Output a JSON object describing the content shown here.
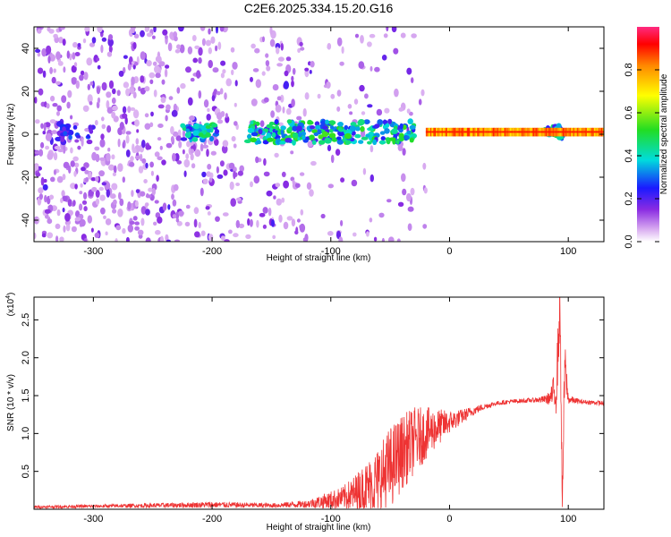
{
  "title": "C2E6.2025.334.15.20.G16",
  "chart_data": [
    {
      "type": "heatmap",
      "xlabel": "Height of straight line (km)",
      "ylabel": "Frequency (Hz)",
      "xlim": [
        -350,
        130
      ],
      "ylim": [
        -50,
        50
      ],
      "xticks": [
        -300,
        -200,
        -100,
        0,
        100
      ],
      "yticks": [
        -40,
        -20,
        0,
        20,
        40
      ],
      "colorbar": {
        "label": "Normalized spectral amplitude",
        "range": [
          0,
          1
        ],
        "ticks": [
          "0.0",
          "0.2",
          "0.4",
          "0.6",
          "0.8"
        ],
        "colormap": "rainbow (violet-blue-cyan-green-yellow-red-magenta)"
      },
      "features": [
        {
          "description": "Scattered weak noise (violet/blue)",
          "x_range": [
            -350,
            -20
          ],
          "freq_range": [
            -50,
            50
          ]
        },
        {
          "description": "Strong ridge near 0 Hz (green/yellow/red)",
          "x_range": [
            -20,
            130
          ],
          "freq": 0.5,
          "amplitude": 0.8
        },
        {
          "description": "Cluster",
          "x_range": [
            -225,
            -195
          ],
          "freq": 1,
          "amplitude": 0.4
        },
        {
          "description": "Cluster",
          "x_range": [
            -170,
            -30
          ],
          "freq": 1,
          "amplitude": 0.45
        },
        {
          "description": "Cluster",
          "x": 90,
          "freq": 3,
          "amplitude": 0.45
        }
      ]
    },
    {
      "type": "line",
      "xlabel": "Height of straight line (km)",
      "ylabel": "SNR (10 * v/v)",
      "y_multiplier": "(x10^4)",
      "xlim": [
        -350,
        130
      ],
      "ylim": [
        0,
        2.8
      ],
      "xticks": [
        -300,
        -200,
        -100,
        0,
        100
      ],
      "yticks": [
        "0.5",
        "1.0",
        "1.5",
        "2.0",
        "2.5"
      ],
      "color": "#ee3333",
      "series": [
        {
          "x": [
            -350,
            -300,
            -250,
            -200,
            -150,
            -120,
            -100,
            -90,
            -80,
            -70,
            -60,
            -50,
            -40,
            -30,
            -20,
            -10,
            0,
            10,
            20,
            30,
            40,
            50,
            60,
            70,
            80,
            85,
            90,
            93,
            95,
            97,
            100,
            110,
            120,
            130
          ],
          "y": [
            0.03,
            0.04,
            0.05,
            0.06,
            0.05,
            0.07,
            0.12,
            0.15,
            0.2,
            0.28,
            0.38,
            0.55,
            0.75,
            0.9,
            1.0,
            1.08,
            1.15,
            1.22,
            1.3,
            1.36,
            1.4,
            1.42,
            1.43,
            1.44,
            1.45,
            1.47,
            1.6,
            2.7,
            0.05,
            1.9,
            1.45,
            1.42,
            1.41,
            1.4
          ],
          "noise_amplitude": [
            0.02,
            0.02,
            0.03,
            0.04,
            0.03,
            0.05,
            0.12,
            0.15,
            0.25,
            0.35,
            0.45,
            0.55,
            0.5,
            0.45,
            0.35,
            0.25,
            0.15,
            0.1,
            0.06,
            0.04,
            0.03,
            0.03,
            0.03,
            0.03,
            0.05,
            0.1,
            0.35,
            0.4,
            0.2,
            0.4,
            0.06,
            0.03,
            0.03,
            0.03
          ]
        }
      ]
    }
  ]
}
